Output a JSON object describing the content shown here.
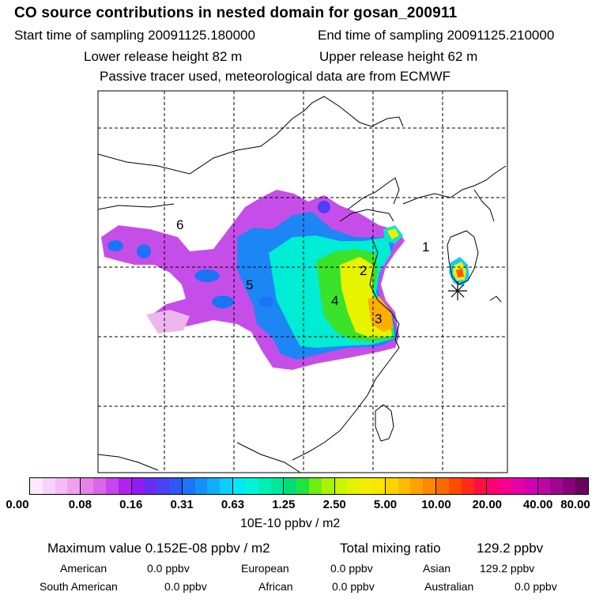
{
  "header": {
    "title": "CO  source contributions in nested domain for gosan_200911",
    "start_sampling": "Start time of sampling 20091125.180000",
    "end_sampling": "End time of sampling 20091125.210000",
    "lower_release": "Lower release height   82 m",
    "upper_release": "Upper release height   62 m",
    "tracer_note": "Passive tracer used, meteorological data are from ECMWF"
  },
  "map": {
    "region_labels": [
      "1",
      "2",
      "3",
      "4",
      "5",
      "6"
    ],
    "receptor_marker": "asterisk-icon"
  },
  "colorbar": {
    "ticks": [
      "0.00",
      "0.08",
      "0.16",
      "0.31",
      "0.63",
      "1.25",
      "2.50",
      "5.00",
      "10.00",
      "20.00",
      "40.00",
      "80.00"
    ],
    "segment_colors": [
      [
        "#fde9fd",
        "#f9d2f9",
        "#f5bbf5",
        "#efa1ef"
      ],
      [
        "#e584e5",
        "#da66e8",
        "#c945ed",
        "#b21ff0"
      ],
      [
        "#8f1cf0",
        "#6a2cf2",
        "#4b40f5",
        "#2d58f7"
      ],
      [
        "#1f73f8",
        "#1690f9",
        "#10adf9",
        "#0ccdf9"
      ],
      [
        "#00eaf6",
        "#00f5d7",
        "#00efb6",
        "#00e998"
      ],
      [
        "#00dd77",
        "#22e23f",
        "#6eee10",
        "#a6f400"
      ],
      [
        "#caf600",
        "#e3f300",
        "#f5ee00",
        "#fde400"
      ],
      [
        "#ffd200",
        "#ffbb00",
        "#ffa200",
        "#ff8800"
      ],
      [
        "#ff6a00",
        "#ff4b00",
        "#ff2a1c",
        "#ff0e44"
      ],
      [
        "#ff0072",
        "#f50092",
        "#e400a6",
        "#d000b2"
      ],
      [
        "#b80aa3",
        "#a00690",
        "#86047a",
        "#6a0260"
      ]
    ],
    "units": "10E-10 ppbv / m2"
  },
  "summary": {
    "max_label": "Maximum value  0.152E-08 ppbv / m2",
    "total_label": "Total mixing ratio",
    "total_value": "129.2 ppbv",
    "sources": [
      {
        "name": "American",
        "value": "0.0 ppbv"
      },
      {
        "name": "European",
        "value": "0.0 ppbv"
      },
      {
        "name": "Asian",
        "value": "129.2 ppbv"
      },
      {
        "name": "South American",
        "value": "0.0 ppbv"
      },
      {
        "name": "African",
        "value": "0.0 ppbv"
      },
      {
        "name": "Australian",
        "value": "0.0 ppbv"
      }
    ]
  }
}
